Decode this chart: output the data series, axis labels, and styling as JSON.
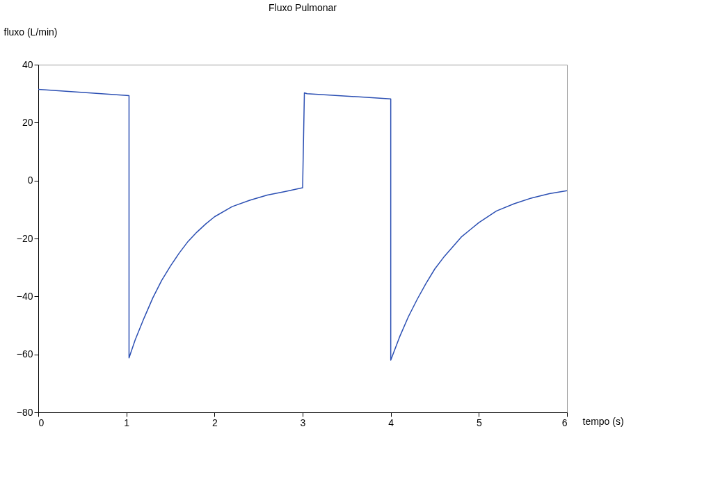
{
  "chart_data": {
    "type": "line",
    "title": "Fluxo Pulmonar",
    "xlabel": "tempo (s)",
    "ylabel": "fluxo (L/min)",
    "xlim": [
      0,
      6
    ],
    "ylim": [
      -80,
      40
    ],
    "xticks": [
      0,
      1,
      2,
      3,
      4,
      5,
      6
    ],
    "yticks": [
      -80,
      -60,
      -40,
      -20,
      0,
      20,
      40
    ],
    "grid": false,
    "legend": false,
    "marker": "none",
    "line_style": "solid",
    "series": [
      {
        "color": "#2b4fb3",
        "x": [
          0,
          1.03,
          1.03,
          1.1,
          1.2,
          1.3,
          1.4,
          1.5,
          1.6,
          1.7,
          1.8,
          1.9,
          2.0,
          2.2,
          2.4,
          2.6,
          2.8,
          3.0,
          3.02,
          3.05,
          4.0,
          4.0,
          4.1,
          4.2,
          4.3,
          4.4,
          4.5,
          4.6,
          4.7,
          4.8,
          4.9,
          5.0,
          5.2,
          5.4,
          5.6,
          5.8,
          6.0
        ],
        "values": [
          31.5,
          29.3,
          -61.2,
          -55,
          -47.5,
          -40.5,
          -34.5,
          -29.5,
          -25,
          -21,
          -17.8,
          -15,
          -12.5,
          -9,
          -6.8,
          -5,
          -3.8,
          -2.5,
          30.3,
          30,
          28.2,
          -62,
          -54,
          -47,
          -41,
          -35.5,
          -30.5,
          -26.5,
          -23,
          -19.5,
          -17,
          -14.5,
          -10.5,
          -8,
          -6,
          -4.5,
          -3.5
        ]
      }
    ]
  }
}
